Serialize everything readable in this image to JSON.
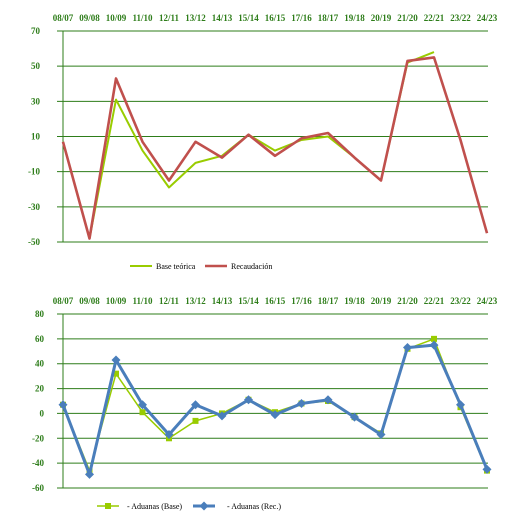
{
  "chart_data": [
    {
      "type": "line",
      "categories": [
        "08/07",
        "09/08",
        "10/09",
        "11/10",
        "12/11",
        "13/12",
        "14/13",
        "15/14",
        "16/15",
        "17/16",
        "18/17",
        "19/18",
        "20/19",
        "21/20",
        "22/21",
        "23/22",
        "24/23"
      ],
      "ylim": [
        -50,
        70
      ],
      "yticks": [
        70,
        50,
        30,
        10,
        -10,
        -30,
        -50
      ],
      "grid": true,
      "legend_position": "bottom",
      "series": [
        {
          "name": "Base teórica",
          "color": "#99cc00",
          "values": [
            7,
            -48,
            31,
            2,
            -19,
            -5,
            -1,
            11,
            2,
            8,
            10,
            -2,
            -15,
            52,
            58,
            null,
            null
          ]
        },
        {
          "name": "Recaudación",
          "color": "#c0504d",
          "values": [
            7,
            -48,
            43,
            7,
            -15,
            7,
            -2,
            11,
            -1,
            9,
            12,
            -2,
            -15,
            53,
            55,
            8,
            -45
          ]
        }
      ]
    },
    {
      "type": "line",
      "categories": [
        "08/07",
        "09/08",
        "10/09",
        "11/10",
        "12/11",
        "13/12",
        "14/13",
        "15/14",
        "16/15",
        "17/16",
        "18/17",
        "19/18",
        "20/19",
        "21/20",
        "22/21",
        "23/22",
        "24/23"
      ],
      "ylim": [
        -60,
        80
      ],
      "yticks": [
        80,
        60,
        40,
        20,
        0,
        -20,
        -40,
        -60
      ],
      "grid": true,
      "legend_position": "bottom",
      "series": [
        {
          "name": "- Aduanas (Base)",
          "color": "#99cc00",
          "marker": "square",
          "values": [
            7,
            -46,
            32,
            1,
            -20,
            -6,
            0,
            11,
            1,
            8,
            10,
            -3,
            -16,
            52,
            60,
            5,
            -46
          ]
        },
        {
          "name": "- Aduanas (Rec.)",
          "color": "#4a7ebb",
          "marker": "diamond",
          "values": [
            7,
            -49,
            43,
            7,
            -17,
            7,
            -2,
            11,
            -1,
            8,
            11,
            -3,
            -17,
            53,
            55,
            7,
            -45
          ]
        }
      ]
    }
  ]
}
